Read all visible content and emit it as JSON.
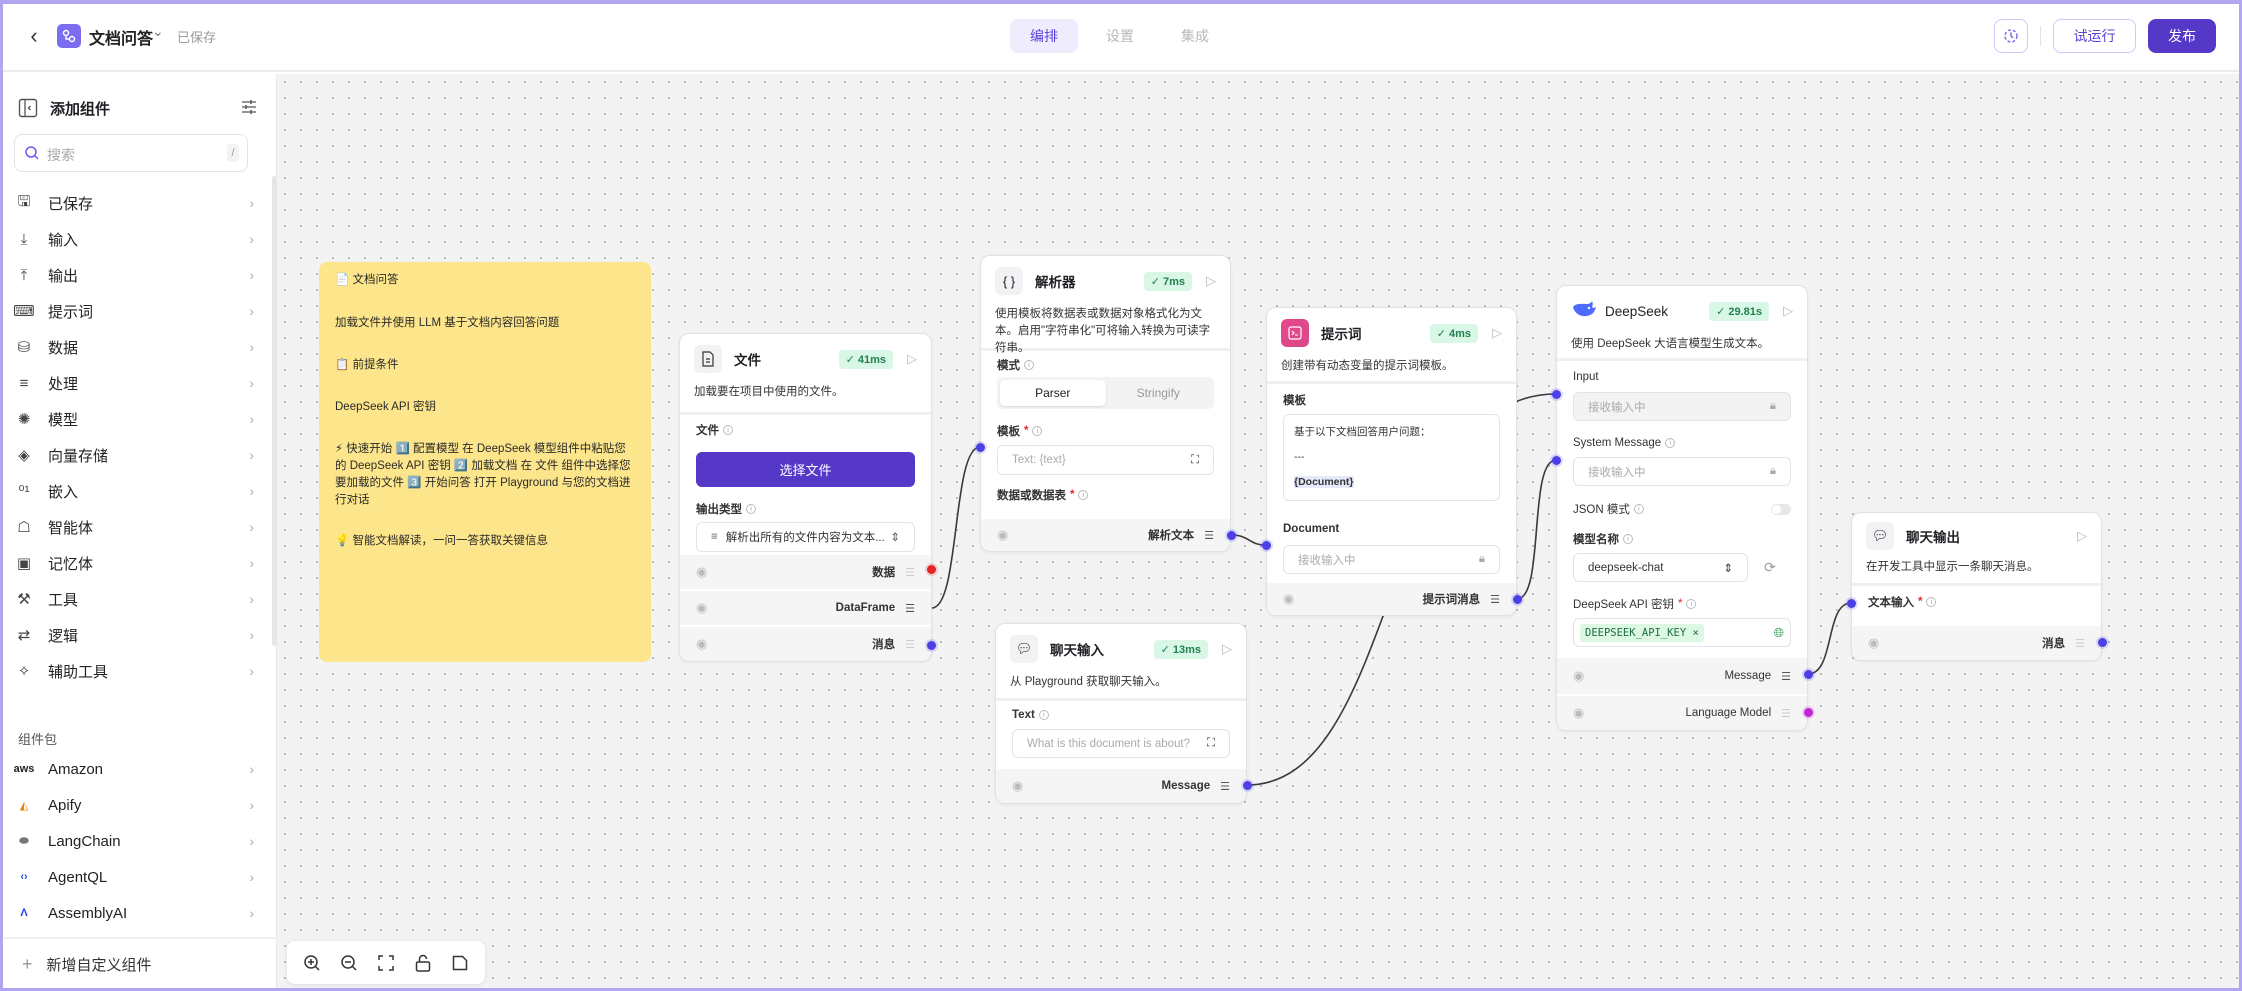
{
  "header": {
    "title": "文档问答",
    "status": "已保存",
    "tabs": [
      {
        "label": "编排",
        "active": true
      },
      {
        "label": "设置"
      },
      {
        "label": "集成"
      }
    ],
    "run_label": "试运行",
    "publish_label": "发布"
  },
  "sidebar": {
    "title": "添加组件",
    "search_placeholder": "搜索",
    "search_shortcut": "/",
    "categories": [
      {
        "label": "已保存",
        "icon": "save-icon"
      },
      {
        "label": "输入",
        "icon": "download-icon"
      },
      {
        "label": "输出",
        "icon": "upload-icon"
      },
      {
        "label": "提示词",
        "icon": "terminal-icon"
      },
      {
        "label": "数据",
        "icon": "database-icon"
      },
      {
        "label": "处理",
        "icon": "filter-icon"
      },
      {
        "label": "模型",
        "icon": "brain-icon"
      },
      {
        "label": "向量存储",
        "icon": "layers-icon"
      },
      {
        "label": "嵌入",
        "icon": "binary-icon"
      },
      {
        "label": "智能体",
        "icon": "bot-icon"
      },
      {
        "label": "记忆体",
        "icon": "cpu-icon"
      },
      {
        "label": "工具",
        "icon": "hammer-icon"
      },
      {
        "label": "逻辑",
        "icon": "arrows-icon"
      },
      {
        "label": "辅助工具",
        "icon": "wand-icon"
      }
    ],
    "bundles_title": "组件包",
    "bundles": [
      {
        "label": "Amazon",
        "icon": "aws-icon"
      },
      {
        "label": "Apify",
        "icon": "apify-icon"
      },
      {
        "label": "LangChain",
        "icon": "langchain-icon"
      },
      {
        "label": "AgentQL",
        "icon": "agentql-icon"
      },
      {
        "label": "AssemblyAI",
        "icon": "assemblyai-icon"
      }
    ],
    "add_custom_label": "新增自定义组件"
  },
  "note": {
    "lines": [
      "📄 文档问答",
      "加载文件并使用 LLM 基于文档内容回答问题",
      "📋 前提条件",
      "DeepSeek API 密钥",
      "⚡ 快速开始 1️⃣ 配置模型 在 DeepSeek 模型组件中粘贴您的 DeepSeek API 密钥 2️⃣ 加载文档 在 文件 组件中选择您要加载的文件 3️⃣ 开始问答 打开 Playground 与您的文档进行对话",
      "💡 智能文档解读，一问一答获取关键信息"
    ]
  },
  "nodes": {
    "file": {
      "title": "文件",
      "time": "41ms",
      "desc": "加载要在项目中使用的文件。",
      "file_label": "文件",
      "button": "选择文件",
      "output_type_label": "输出类型",
      "output_type_value": "解析出所有的文件内容为文本...",
      "outputs": [
        "数据",
        "DataFrame",
        "消息"
      ]
    },
    "parser": {
      "title": "解析器",
      "time": "7ms",
      "desc": "使用模板将数据表或数据对象格式化为文本。启用\"字符串化\"可将输入转换为可读字符串。",
      "mode_label": "模式",
      "modes": [
        "Parser",
        "Stringify"
      ],
      "template_label": "模板",
      "template_placeholder": "Text: {text}",
      "data_label": "数据或数据表",
      "output": "解析文本"
    },
    "prompt": {
      "title": "提示词",
      "time": "4ms",
      "desc": "创建带有动态变量的提示词模板。",
      "template_label": "模板",
      "template_lines": [
        "基于以下文档回答用户问题：",
        "---",
        "{Document}"
      ],
      "document_label": "Document",
      "document_placeholder": "接收输入中",
      "output": "提示词消息"
    },
    "chat_input": {
      "title": "聊天输入",
      "time": "13ms",
      "desc": "从 Playground 获取聊天输入。",
      "text_label": "Text",
      "text_placeholder": "What is this document is about?",
      "output": "Message"
    },
    "deepseek": {
      "title": "DeepSeek",
      "time": "29.81s",
      "desc": "使用 DeepSeek 大语言模型生成文本。",
      "input_label": "Input",
      "input_placeholder": "接收输入中",
      "system_label": "System Message",
      "system_placeholder": "接收输入中",
      "json_label": "JSON 模式",
      "json_enabled": false,
      "model_label": "模型名称",
      "model_value": "deepseek-chat",
      "key_label": "DeepSeek API 密钥",
      "key_value": "DEEPSEEK_API_KEY",
      "outputs": [
        "Message",
        "Language Model"
      ]
    },
    "chat_output": {
      "title": "聊天输出",
      "desc": "在开发工具中显示一条聊天消息。",
      "text_label": "文本输入",
      "output": "消息"
    }
  },
  "colors": {
    "accent": "#5538c8",
    "handle": "#4b40e6",
    "handle_data": "#e5252a",
    "handle_model": "#c026d3",
    "success": "#23804f",
    "note": "#fce58a"
  }
}
